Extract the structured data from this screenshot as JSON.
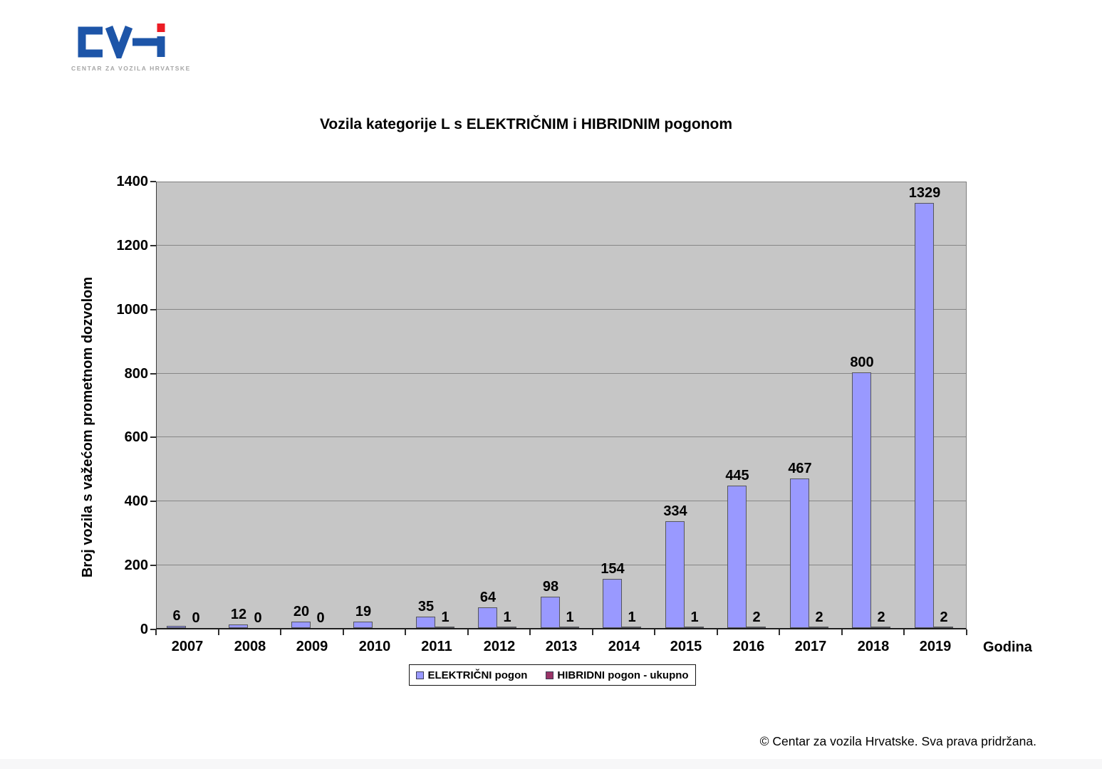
{
  "logo": {
    "brand": "CVH",
    "tagline": "CENTAR ZA VOZILA HRVATSKE",
    "blue": "#1d55a8",
    "red": "#ec1c24"
  },
  "footer": "© Centar za vozila Hrvatske. Sva prava pridržana.",
  "chart_data": {
    "type": "bar",
    "title": "Vozila kategorije L s ELEKTRIČNIM i HIBRIDNIM pogonom",
    "xlabel": "Godina",
    "ylabel": "Broj vozila s važećom prometnom dozvolom",
    "ylim": [
      0,
      1400
    ],
    "ytick_step": 200,
    "yticks": [
      "0",
      "200",
      "400",
      "600",
      "800",
      "1000",
      "1200",
      "1400"
    ],
    "grid": true,
    "legend_position": "bottom",
    "plot_bg": "#c6c6c6",
    "gridline_color": "#868686",
    "categories": [
      "2007",
      "2008",
      "2009",
      "2010",
      "2011",
      "2012",
      "2013",
      "2014",
      "2015",
      "2016",
      "2017",
      "2018",
      "2019"
    ],
    "series": [
      {
        "name": "ELEKTRIČNI pogon",
        "color": "#9999FF",
        "values": [
          6,
          12,
          20,
          19,
          35,
          64,
          98,
          154,
          334,
          445,
          467,
          800,
          1329
        ],
        "labels": [
          "6",
          "12",
          "20",
          "19",
          "35",
          "64",
          "98",
          "154",
          "334",
          "445",
          "467",
          "800",
          "1329"
        ]
      },
      {
        "name": "HIBRIDNI pogon - ukupno",
        "color": "#993366",
        "values": [
          0,
          0,
          0,
          0,
          1,
          1,
          1,
          1,
          1,
          2,
          2,
          2,
          2
        ],
        "labels": [
          "0",
          "0",
          "0",
          "",
          "1",
          "1",
          "1",
          "1",
          "1",
          "2",
          "2",
          "2",
          "2"
        ]
      }
    ]
  }
}
